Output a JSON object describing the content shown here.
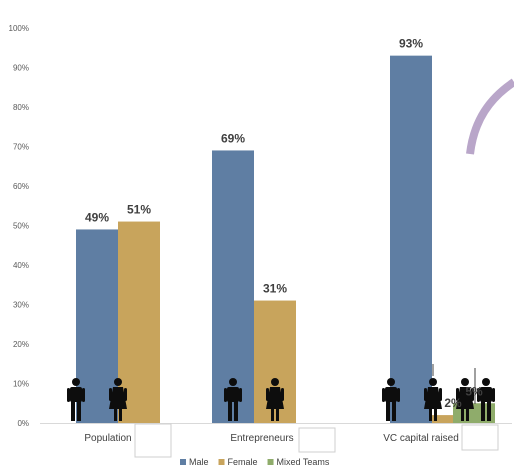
{
  "chart_data": {
    "type": "bar",
    "categories": [
      "Population",
      "Entrepreneurs",
      "VC capital raised"
    ],
    "series": [
      {
        "name": "Male",
        "values": [
          49,
          69,
          93
        ],
        "color": "#5f7ea3"
      },
      {
        "name": "Female",
        "values": [
          51,
          31,
          2
        ],
        "color": "#c8a45c"
      },
      {
        "name": "Mixed Teams",
        "values": [
          null,
          null,
          5
        ],
        "color": "#8fac6b"
      }
    ],
    "data_labels": [
      [
        "49%",
        "69%",
        "93%"
      ],
      [
        "51%",
        "31%",
        "2%"
      ],
      [
        null,
        null,
        "5%"
      ]
    ],
    "ylim": [
      0,
      100
    ],
    "yticks": [
      0,
      10,
      20,
      30,
      40,
      50,
      60,
      70,
      80,
      90,
      100
    ],
    "ytick_labels": [
      "0%",
      "10%",
      "20%",
      "30%",
      "40%",
      "50%",
      "60%",
      "70%",
      "80%",
      "90%",
      "100%"
    ],
    "legend_position": "bottom",
    "grid": false,
    "decorations": {
      "person_icons": [
        "male-figure-icon",
        "female-figure-icon"
      ],
      "accent_arc_color": "#b9a6c9"
    }
  }
}
